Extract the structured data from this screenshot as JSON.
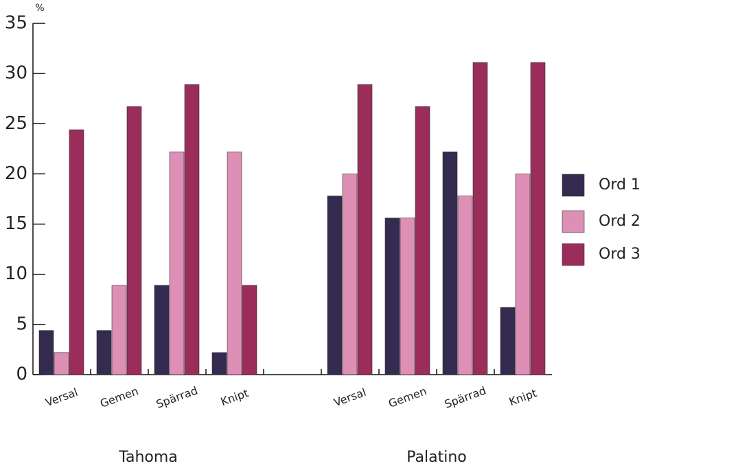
{
  "chart_data": {
    "type": "bar",
    "y_label": "%",
    "categories": [
      "Versal",
      "Gemen",
      "Spärrad",
      "Knipt",
      null,
      "Versal",
      "Gemen",
      "Spärrad",
      "Knipt"
    ],
    "group_labels": [
      "Tahoma",
      "Palatino"
    ],
    "series": [
      {
        "name": "Ord 1",
        "color": "#352a4f",
        "values": [
          4.4,
          4.4,
          8.9,
          2.2,
          null,
          17.8,
          15.6,
          22.2,
          6.7
        ]
      },
      {
        "name": "Ord 2",
        "color": "#dd8fb5",
        "values": [
          2.2,
          8.9,
          22.2,
          22.2,
          null,
          20.0,
          15.6,
          17.8,
          20.0
        ]
      },
      {
        "name": "Ord 3",
        "color": "#9a2d5a",
        "values": [
          24.4,
          26.7,
          28.9,
          8.9,
          null,
          28.9,
          26.7,
          31.1,
          31.1
        ]
      }
    ],
    "ylim": [
      0,
      35
    ],
    "yticks": [
      0,
      5,
      10,
      15,
      20,
      25,
      30,
      35
    ],
    "grid": false,
    "legend": "right"
  }
}
